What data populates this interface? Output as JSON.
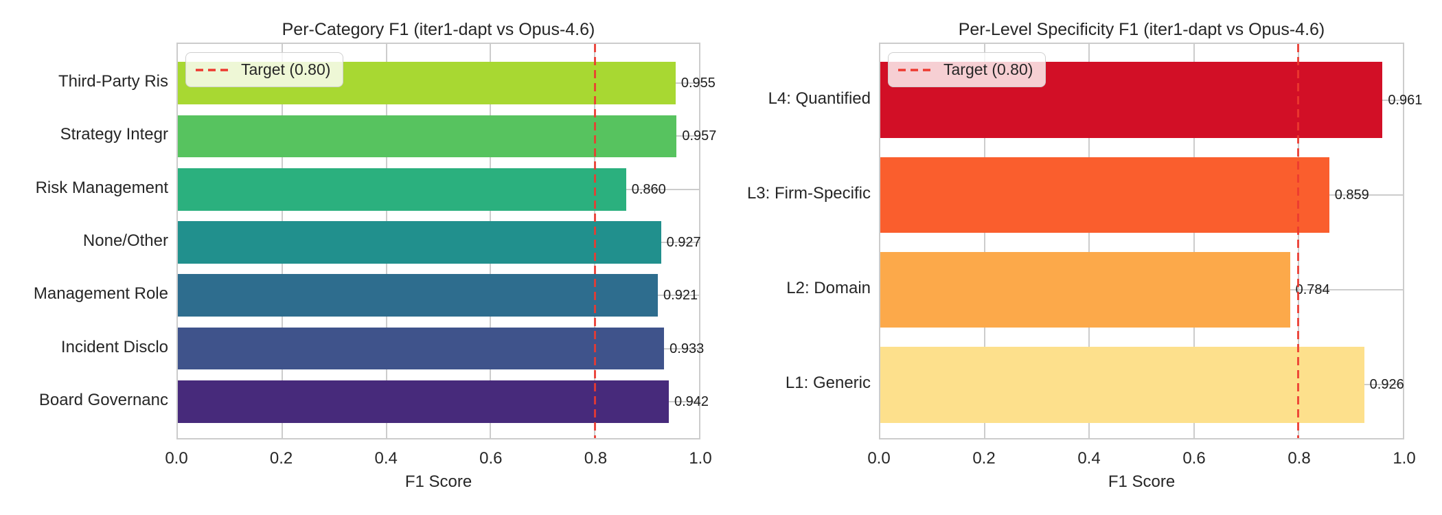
{
  "chart_data": [
    {
      "type": "bar",
      "orientation": "horizontal",
      "title": "Per-Category F1 (iter1-dapt vs Opus-4.6)",
      "xlabel": "F1 Score",
      "xlim": [
        0.0,
        1.0
      ],
      "xticks": [
        0.0,
        0.2,
        0.4,
        0.6,
        0.8,
        1.0
      ],
      "xtick_labels": [
        "0.0",
        "0.2",
        "0.4",
        "0.6",
        "0.8",
        "1.0"
      ],
      "grid": true,
      "legend": {
        "position": "upper left",
        "entries": [
          {
            "label": "Target (0.80)",
            "style": "dashed-line",
            "color": "#ed392f"
          }
        ]
      },
      "target_line": {
        "value": 0.8,
        "color": "#ed392f",
        "style": "dashed"
      },
      "categories": [
        "Third-Party Ris",
        "Strategy Integr",
        "Risk Management",
        "None/Other",
        "Management Role",
        "Incident Disclo",
        "Board Governanc"
      ],
      "values": [
        0.955,
        0.957,
        0.86,
        0.927,
        0.921,
        0.933,
        0.942
      ],
      "value_labels": [
        "0.955",
        "0.957",
        "0.860",
        "0.927",
        "0.921",
        "0.933",
        "0.942"
      ],
      "bar_colors": [
        "#a8d832",
        "#57c35f",
        "#2bb07e",
        "#21908d",
        "#2e6d8e",
        "#3f538b",
        "#472a7b"
      ]
    },
    {
      "type": "bar",
      "orientation": "horizontal",
      "title": "Per-Level Specificity F1 (iter1-dapt vs Opus-4.6)",
      "xlabel": "F1 Score",
      "xlim": [
        0.0,
        1.0
      ],
      "xticks": [
        0.0,
        0.2,
        0.4,
        0.6,
        0.8,
        1.0
      ],
      "xtick_labels": [
        "0.0",
        "0.2",
        "0.4",
        "0.6",
        "0.8",
        "1.0"
      ],
      "grid": true,
      "legend": {
        "position": "upper left",
        "entries": [
          {
            "label": "Target (0.80)",
            "style": "dashed-line",
            "color": "#ed392f"
          }
        ]
      },
      "target_line": {
        "value": 0.8,
        "color": "#ed392f",
        "style": "dashed"
      },
      "categories": [
        "L4: Quantified",
        "L3: Firm-Specific",
        "L2: Domain",
        "L1: Generic"
      ],
      "values": [
        0.961,
        0.859,
        0.784,
        0.926
      ],
      "value_labels": [
        "0.961",
        "0.859",
        "0.784",
        "0.926"
      ],
      "bar_colors": [
        "#d20f26",
        "#fa5e2d",
        "#fca94a",
        "#fde08c"
      ]
    }
  ],
  "colors": {
    "target_line": "#ed392f",
    "grid": "#cccccc",
    "text": "#262626",
    "background": "#ffffff"
  }
}
